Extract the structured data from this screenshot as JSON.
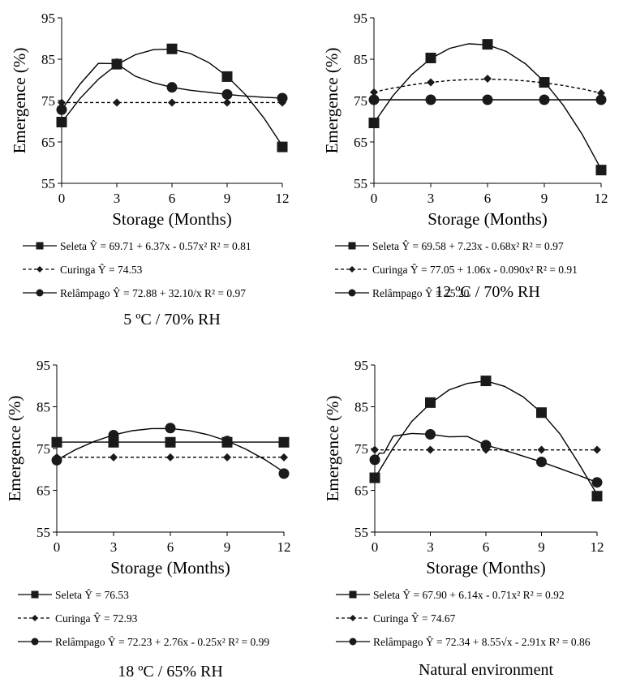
{
  "chart_data": [
    {
      "type": "line",
      "caption": "5 ºC / 70% RH",
      "xlabel": "Storage (Months)",
      "ylabel": "Emergence (%)",
      "x": [
        0,
        3,
        6,
        9,
        12
      ],
      "xticks": [
        "0",
        "3",
        "6",
        "9",
        "12"
      ],
      "ylim": [
        55,
        95
      ],
      "yticks": [
        "55",
        "65",
        "75",
        "85",
        "95"
      ],
      "series": [
        {
          "name": "Seleta",
          "marker": "square",
          "line": "solid",
          "values": [
            69.8,
            83.8,
            87.5,
            80.8,
            63.8
          ],
          "equation": "Ŷ = 69.71 + 6.37x - 0.57x²",
          "r2": "R² = 0.81",
          "curve": [
            [
              0,
              69.71
            ],
            [
              1,
              75.51
            ],
            [
              2,
              80.17
            ],
            [
              3,
              83.69
            ],
            [
              4,
              86.07
            ],
            [
              5,
              87.31
            ],
            [
              6,
              87.41
            ],
            [
              7,
              86.37
            ],
            [
              8,
              84.19
            ],
            [
              9,
              80.87
            ],
            [
              10,
              76.41
            ],
            [
              11,
              70.81
            ],
            [
              12,
              64.07
            ]
          ]
        },
        {
          "name": "Curinga",
          "marker": "diamond",
          "line": "dashed",
          "values": [
            74.5,
            74.5,
            74.5,
            74.5,
            74.5
          ],
          "equation": "Ŷ = 74.53",
          "r2": "",
          "curve": [
            [
              0,
              74.53
            ],
            [
              12,
              74.53
            ]
          ]
        },
        {
          "name": "Relâmpago",
          "marker": "circle",
          "line": "solid",
          "values": [
            72.8,
            83.9,
            78.2,
            76.5,
            75.6
          ],
          "equation": "Ŷ = 72.88 + 32.10/x",
          "r2": "R² = 0.97",
          "curve": [
            [
              0,
              72.8
            ],
            [
              1,
              79
            ],
            [
              2,
              84
            ],
            [
              3,
              83.9
            ],
            [
              4,
              80.9
            ],
            [
              5,
              79.3
            ],
            [
              6,
              78.2
            ],
            [
              7,
              77.5
            ],
            [
              8,
              77
            ],
            [
              9,
              76.5
            ],
            [
              10,
              76.1
            ],
            [
              11,
              75.8
            ],
            [
              12,
              75.6
            ]
          ]
        }
      ]
    },
    {
      "type": "line",
      "caption": "12 ºC / 70% RH",
      "xlabel": "Storage (Months)",
      "ylabel": "Emergence (%)",
      "x": [
        0,
        3,
        6,
        9,
        12
      ],
      "xticks": [
        "0",
        "3",
        "6",
        "9",
        "12"
      ],
      "ylim": [
        55,
        95
      ],
      "yticks": [
        "55",
        "65",
        "75",
        "85",
        "95"
      ],
      "series": [
        {
          "name": "Seleta",
          "marker": "square",
          "line": "solid",
          "values": [
            69.6,
            85.3,
            88.6,
            79.4,
            58.2
          ],
          "equation": "Ŷ = 69.58 + 7.23x - 0.68x²",
          "r2": "R² = 0.97",
          "curve": [
            [
              0,
              69.58
            ],
            [
              1,
              76.13
            ],
            [
              2,
              81.32
            ],
            [
              3,
              85.15
            ],
            [
              4,
              87.62
            ],
            [
              5,
              88.73
            ],
            [
              6,
              88.48
            ],
            [
              7,
              86.87
            ],
            [
              8,
              83.9
            ],
            [
              9,
              79.57
            ],
            [
              10,
              73.88
            ],
            [
              11,
              66.83
            ],
            [
              12,
              58.42
            ]
          ]
        },
        {
          "name": "Curinga",
          "marker": "diamond",
          "line": "dashed",
          "values": [
            77.0,
            79.4,
            80.3,
            79.4,
            76.8
          ],
          "equation": "Ŷ = 77.05 + 1.06x - 0.090x²",
          "r2": "R² = 0.91",
          "curve": [
            [
              0,
              77.05
            ],
            [
              1,
              78.02
            ],
            [
              2,
              78.81
            ],
            [
              3,
              79.42
            ],
            [
              4,
              79.85
            ],
            [
              5,
              80.1
            ],
            [
              6,
              80.17
            ],
            [
              7,
              80.06
            ],
            [
              8,
              79.77
            ],
            [
              9,
              79.3
            ],
            [
              10,
              78.65
            ],
            [
              11,
              77.82
            ],
            [
              12,
              76.81
            ]
          ]
        },
        {
          "name": "Relâmpago",
          "marker": "circle",
          "line": "solid",
          "values": [
            75.2,
            75.2,
            75.2,
            75.2,
            75.2
          ],
          "equation": "Ŷ = 75.20",
          "r2": "",
          "curve": [
            [
              0,
              75.2
            ],
            [
              12,
              75.2
            ]
          ]
        }
      ]
    },
    {
      "type": "line",
      "caption": "18 ºC / 65% RH",
      "xlabel": "Storage (Months)",
      "ylabel": "Emergence (%)",
      "x": [
        0,
        3,
        6,
        9,
        12
      ],
      "xticks": [
        "0",
        "3",
        "6",
        "9",
        "12"
      ],
      "ylim": [
        55,
        95
      ],
      "yticks": [
        "55",
        "65",
        "75",
        "85",
        "95"
      ],
      "series": [
        {
          "name": "Seleta",
          "marker": "square",
          "line": "solid",
          "values": [
            76.5,
            76.5,
            76.5,
            76.5,
            76.5
          ],
          "equation": "Ŷ = 76.53",
          "r2": "",
          "curve": [
            [
              0,
              76.53
            ],
            [
              12,
              76.53
            ]
          ]
        },
        {
          "name": "Curinga",
          "marker": "diamond",
          "line": "dashed",
          "values": [
            72.9,
            72.9,
            72.9,
            72.9,
            72.9
          ],
          "equation": "Ŷ = 72.93",
          "r2": "",
          "curve": [
            [
              0,
              72.93
            ],
            [
              12,
              72.93
            ]
          ]
        },
        {
          "name": "Relâmpago",
          "marker": "circle",
          "line": "solid",
          "values": [
            72.2,
            78.2,
            79.9,
            76.8,
            69.0
          ],
          "equation": "Ŷ = 72.23 + 2.76x - 0.25x²",
          "r2": "R² = 0.99",
          "curve": [
            [
              0,
              72.23
            ],
            [
              1,
              74.74
            ],
            [
              2,
              76.75
            ],
            [
              3,
              78.26
            ],
            [
              4,
              79.27
            ],
            [
              5,
              79.78
            ],
            [
              6,
              79.79
            ],
            [
              7,
              79.3
            ],
            [
              8,
              78.31
            ],
            [
              9,
              76.82
            ],
            [
              10,
              74.83
            ],
            [
              11,
              72.34
            ],
            [
              12,
              69.35
            ]
          ]
        }
      ]
    },
    {
      "type": "line",
      "caption": "Natural environment",
      "xlabel": "Storage (Months)",
      "ylabel": "Emergence (%)",
      "x": [
        0,
        3,
        6,
        9,
        12
      ],
      "xticks": [
        "0",
        "3",
        "6",
        "9",
        "12"
      ],
      "ylim": [
        55,
        95
      ],
      "yticks": [
        "55",
        "65",
        "75",
        "85",
        "95"
      ],
      "series": [
        {
          "name": "Seleta",
          "marker": "square",
          "line": "solid",
          "values": [
            68.0,
            86.0,
            91.2,
            83.6,
            63.6
          ],
          "equation": "Ŷ = 67.90 + 6.14x - 0.71x²",
          "r2": "R² = 0.92",
          "curve": [
            [
              0,
              67.9
            ],
            [
              1,
              75.2
            ],
            [
              2,
              81.5
            ],
            [
              3,
              85.8
            ],
            [
              4,
              89
            ],
            [
              5,
              90.6
            ],
            [
              6,
              91.2
            ],
            [
              7,
              89.9
            ],
            [
              8,
              87.4
            ],
            [
              9,
              83.6
            ],
            [
              10,
              78.5
            ],
            [
              11,
              71.5
            ],
            [
              12,
              64
            ]
          ]
        },
        {
          "name": "Curinga",
          "marker": "diamond",
          "line": "dashed",
          "values": [
            74.7,
            74.7,
            74.7,
            74.7,
            74.7
          ],
          "equation": "Ŷ = 74.67",
          "r2": "",
          "curve": [
            [
              0,
              74.67
            ],
            [
              12,
              74.67
            ]
          ]
        },
        {
          "name": "Relâmpago",
          "marker": "circle",
          "line": "solid",
          "values": [
            72.3,
            78.4,
            75.8,
            71.8,
            66.9
          ],
          "equation": "Ŷ = 72.34 + 8.55√x - 2.91x",
          "r2": "R² = 0.86",
          "curve": [
            [
              0,
              72.34
            ],
            [
              0.25,
              73.9
            ],
            [
              0.5,
              73.92
            ],
            [
              1,
              77.98
            ],
            [
              2,
              78.61
            ],
            [
              3,
              78.42
            ],
            [
              4,
              77.8
            ],
            [
              5,
              77.9
            ],
            [
              6,
              75.8
            ],
            [
              7,
              74.6
            ],
            [
              8,
              73.2
            ],
            [
              9,
              71.8
            ],
            [
              10,
              70.2
            ],
            [
              11,
              68.6
            ],
            [
              12,
              66.9
            ]
          ]
        }
      ]
    }
  ]
}
